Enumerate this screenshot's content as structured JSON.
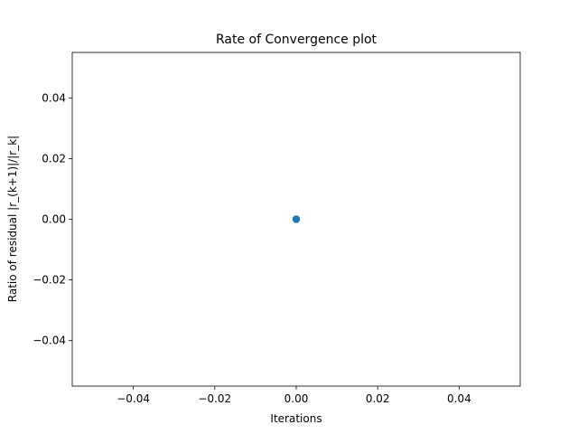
{
  "chart_data": {
    "type": "scatter",
    "title": "Rate of Convergence plot",
    "xlabel": "Iterations",
    "ylabel": "Ratio of residual |r_(k+1)|/|r_k|",
    "xlim": [
      -0.055,
      0.055
    ],
    "ylim": [
      -0.055,
      0.055
    ],
    "x_ticks": [
      -0.04,
      -0.02,
      0.0,
      0.02,
      0.04
    ],
    "x_tick_labels": [
      "−0.04",
      "−0.02",
      "0.00",
      "0.02",
      "0.04"
    ],
    "y_ticks": [
      -0.04,
      -0.02,
      0.0,
      0.02,
      0.04
    ],
    "y_tick_labels": [
      "−0.04",
      "−0.02",
      "0.00",
      "0.02",
      "0.04"
    ],
    "grid": false,
    "points": [
      {
        "x": 0.0,
        "y": 0.0
      }
    ],
    "marker_color": "#1f77b4"
  }
}
